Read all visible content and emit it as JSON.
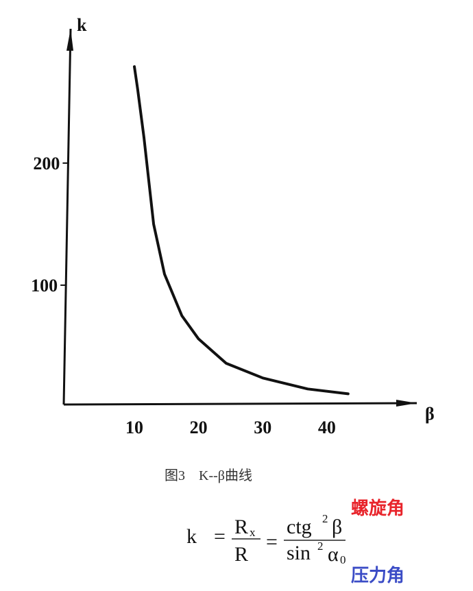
{
  "chart_data": {
    "type": "line",
    "x_label": "β",
    "y_label": "k",
    "x": [
      10,
      10.5,
      11.5,
      13,
      14.7,
      17.4,
      20,
      24.3,
      30,
      37,
      43.3
    ],
    "values": [
      279,
      261,
      221,
      150,
      109,
      75,
      56,
      36,
      24,
      15,
      11
    ],
    "color": "#111111",
    "xlim": [
      -1,
      54
    ],
    "ylim": [
      0,
      310
    ],
    "xticks": [
      10,
      20,
      30,
      40
    ],
    "yticks": [
      100,
      200
    ],
    "grid": false,
    "caption": "图3　K--β曲线"
  },
  "formula": {
    "lhs": "k",
    "equals": "=",
    "frac1": {
      "num": "R",
      "num_sub": "x",
      "den": "R"
    },
    "frac2": {
      "num": "ctg",
      "num_sup": "2",
      "num_tail": "β",
      "den": "sin",
      "den_sup": "2",
      "den_tail": "α",
      "den_sub": "0"
    }
  },
  "annotations": {
    "helix_angle": "螺旋角",
    "pressure_angle": "压力角"
  }
}
